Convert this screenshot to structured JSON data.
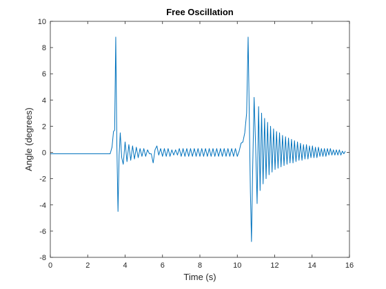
{
  "chart_data": {
    "type": "line",
    "title": "Free Oscillation",
    "xlabel": "Time (s)",
    "ylabel": "Angle (degrees)",
    "xlim": [
      0,
      16
    ],
    "ylim": [
      -8,
      10
    ],
    "xticks": [
      0,
      2,
      4,
      6,
      8,
      10,
      12,
      14,
      16
    ],
    "yticks": [
      -8,
      -6,
      -4,
      -2,
      0,
      2,
      4,
      6,
      8,
      10
    ],
    "grid": false,
    "box": true,
    "series": [
      {
        "color": "#0072BD",
        "x": [
          0,
          3.2,
          3.3,
          3.38,
          3.44,
          3.5,
          3.56,
          3.62,
          3.68,
          3.74,
          3.82,
          3.9,
          4.0,
          4.1,
          4.2,
          4.3,
          4.4,
          4.5,
          4.6,
          4.7,
          4.8,
          4.9,
          5.0,
          5.1,
          5.2,
          5.3,
          5.4,
          5.5,
          5.6,
          5.7,
          5.8,
          5.9,
          6.0,
          6.1,
          6.2,
          6.3,
          6.4,
          6.5,
          6.6,
          6.7,
          6.8,
          6.9,
          7.0,
          7.1,
          7.2,
          7.3,
          7.4,
          7.5,
          7.6,
          7.7,
          7.8,
          7.9,
          8.0,
          8.1,
          8.2,
          8.3,
          8.4,
          8.5,
          8.6,
          8.7,
          8.8,
          8.9,
          9.0,
          9.1,
          9.2,
          9.3,
          9.4,
          9.5,
          9.6,
          9.7,
          9.8,
          9.9,
          10.0,
          10.1,
          10.2,
          10.3,
          10.4,
          10.5,
          10.58,
          10.64,
          10.7,
          10.76,
          10.82,
          10.9,
          10.98,
          11.06,
          11.14,
          11.22,
          11.3,
          11.38,
          11.46,
          11.54,
          11.62,
          11.7,
          11.78,
          11.86,
          11.94,
          12.02,
          12.1,
          12.18,
          12.26,
          12.34,
          12.42,
          12.5,
          12.58,
          12.66,
          12.74,
          12.82,
          12.9,
          12.98,
          13.06,
          13.14,
          13.22,
          13.3,
          13.38,
          13.46,
          13.54,
          13.62,
          13.7,
          13.78,
          13.86,
          13.94,
          14.02,
          14.1,
          14.18,
          14.26,
          14.34,
          14.42,
          14.5,
          14.58,
          14.66,
          14.74,
          14.82,
          14.9,
          14.98,
          15.06,
          15.14,
          15.22,
          15.3,
          15.38,
          15.46,
          15.54,
          15.62,
          15.7,
          15.78
        ],
        "y": [
          -0.1,
          -0.1,
          0.4,
          1.6,
          1.7,
          8.8,
          0.5,
          -4.5,
          -0.2,
          1.5,
          -0.4,
          -0.9,
          0.8,
          -0.7,
          0.6,
          -0.6,
          0.5,
          -0.5,
          0.4,
          -0.4,
          0.3,
          -0.3,
          0.3,
          -0.3,
          0.2,
          -0.1,
          -0.1,
          -0.8,
          0.2,
          0.5,
          -0.2,
          0.3,
          -0.3,
          0.3,
          -0.3,
          0.3,
          -0.3,
          0.2,
          -0.2,
          0.2,
          -0.2,
          0.3,
          -0.3,
          0.3,
          -0.3,
          0.3,
          -0.3,
          0.3,
          -0.3,
          0.3,
          -0.3,
          0.3,
          -0.3,
          0.3,
          -0.3,
          0.3,
          -0.3,
          0.3,
          -0.3,
          0.3,
          -0.3,
          0.3,
          -0.3,
          0.3,
          -0.3,
          0.3,
          -0.3,
          0.3,
          -0.3,
          0.3,
          -0.3,
          0.3,
          -0.3,
          0.1,
          0.7,
          0.8,
          1.5,
          3.0,
          8.8,
          3.0,
          -3.0,
          -6.8,
          -1.5,
          4.2,
          0.5,
          -3.9,
          3.5,
          -2.9,
          3.0,
          -2.4,
          2.6,
          -2.0,
          2.3,
          -1.7,
          2.0,
          -1.5,
          1.8,
          -1.3,
          1.6,
          -1.2,
          1.5,
          -1.1,
          1.3,
          -1.0,
          1.2,
          -0.9,
          1.1,
          -0.8,
          1.0,
          -0.8,
          0.9,
          -0.7,
          0.8,
          -0.6,
          0.7,
          -0.6,
          0.6,
          -0.5,
          0.6,
          -0.5,
          0.5,
          -0.4,
          0.5,
          -0.4,
          0.4,
          -0.4,
          0.4,
          -0.3,
          0.3,
          -0.3,
          0.3,
          -0.3,
          0.3,
          -0.2,
          0.3,
          -0.2,
          0.2,
          -0.2,
          0.2,
          -0.2,
          0.2,
          -0.2,
          0.1,
          -0.1,
          0.1
        ]
      }
    ]
  }
}
